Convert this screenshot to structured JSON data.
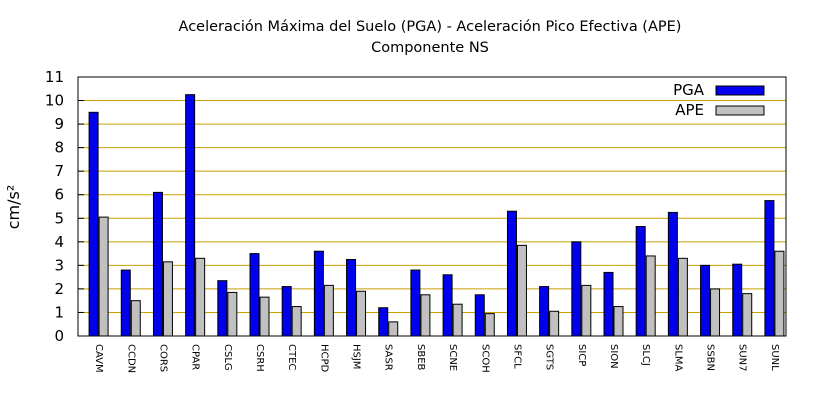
{
  "chart_data": {
    "type": "bar",
    "title": "Aceleración Máxima del Suelo (PGA) -  Aceleración Pico Efectiva (APE)",
    "subtitle": "Componente NS",
    "ylabel": "cm/s²",
    "xlabel": "",
    "ylim": [
      0,
      11
    ],
    "yticks": [
      0,
      1,
      2,
      3,
      4,
      5,
      6,
      7,
      8,
      9,
      10,
      11
    ],
    "grid": true,
    "legend_position": "top-right",
    "categories": [
      "CAVM",
      "CCDN",
      "CORS",
      "CPAR",
      "CSLG",
      "CSRH",
      "CTEC",
      "HCPD",
      "HSJM",
      "SASR",
      "SBEB",
      "SCNE",
      "SCOH",
      "SFCL",
      "SGTS",
      "SICP",
      "SION",
      "SLCJ",
      "SLMA",
      "SSBN",
      "SUN7",
      "SUNL"
    ],
    "series": [
      {
        "name": "PGA",
        "color": "#0000ee",
        "values": [
          9.5,
          2.8,
          6.1,
          10.25,
          2.35,
          3.5,
          2.1,
          3.6,
          3.25,
          1.2,
          2.8,
          2.6,
          1.75,
          5.3,
          2.1,
          4.0,
          2.7,
          4.65,
          5.25,
          3.0,
          3.05,
          5.75
        ]
      },
      {
        "name": "APE",
        "color": "#c0c0c0",
        "values": [
          5.05,
          1.5,
          3.15,
          3.3,
          1.85,
          1.65,
          1.25,
          2.15,
          1.9,
          0.6,
          1.75,
          1.35,
          0.95,
          3.85,
          1.05,
          2.15,
          1.25,
          3.4,
          3.3,
          2.0,
          1.8,
          3.6
        ]
      }
    ],
    "gridline_color": "#c8a000"
  }
}
